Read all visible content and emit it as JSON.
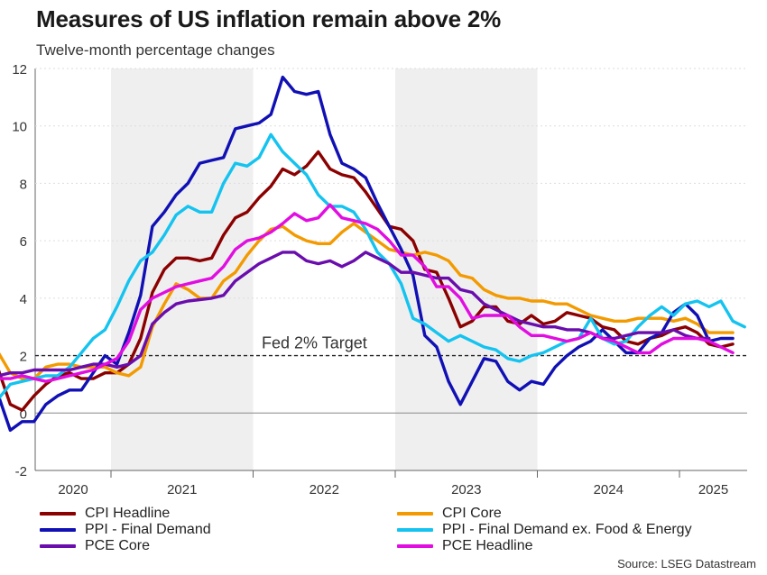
{
  "title": "Measures of US inflation remain above 2%",
  "subtitle": "Twelve-month percentage changes",
  "source": "Source: LSEG Datastream",
  "annotation": "Fed 2% Target",
  "chart_data": {
    "type": "line",
    "title": "Measures of US inflation remain above 2%",
    "subtitle": "Twelve-month percentage changes",
    "ylim": [
      -2,
      12
    ],
    "yticks": [
      "12",
      "10",
      "8",
      "6",
      "4",
      "2",
      "0",
      "-2"
    ],
    "ytick_values": [
      12,
      10,
      8,
      6,
      4,
      2,
      0,
      -2
    ],
    "year_labels": [
      "2020",
      "2021",
      "2022",
      "2023",
      "2024",
      "2025"
    ],
    "grid": true,
    "legend_position": "bottom",
    "reference_line": {
      "value": 2,
      "label": "Fed 2% Target",
      "style": "dashed"
    },
    "shaded_years": [
      "2021",
      "2023"
    ],
    "x_start": "2020-01",
    "x_end": "2025-06",
    "series": [
      {
        "name": "CPI Headline",
        "color": "#8b0000",
        "values": [
          2.5,
          2.3,
          1.5,
          0.3,
          0.1,
          0.6,
          1.0,
          1.3,
          1.4,
          1.2,
          1.2,
          1.4,
          1.4,
          1.7,
          2.6,
          4.2,
          5.0,
          5.4,
          5.4,
          5.3,
          5.4,
          6.2,
          6.8,
          7.0,
          7.5,
          7.9,
          8.5,
          8.3,
          8.6,
          9.1,
          8.5,
          8.3,
          8.2,
          7.7,
          7.1,
          6.5,
          6.4,
          6.0,
          5.0,
          4.9,
          4.0,
          3.0,
          3.2,
          3.7,
          3.7,
          3.2,
          3.1,
          3.4,
          3.1,
          3.2,
          3.5,
          3.4,
          3.3,
          3.0,
          2.9,
          2.5,
          2.4,
          2.6,
          2.7,
          2.9,
          3.0,
          2.8,
          2.4,
          2.3,
          2.4
        ]
      },
      {
        "name": "CPI Core",
        "color": "#f39a00",
        "values": [
          2.3,
          2.4,
          2.1,
          1.4,
          1.2,
          1.2,
          1.6,
          1.7,
          1.7,
          1.6,
          1.6,
          1.6,
          1.4,
          1.3,
          1.6,
          3.0,
          3.8,
          4.5,
          4.3,
          4.0,
          4.0,
          4.6,
          4.9,
          5.5,
          6.0,
          6.4,
          6.5,
          6.2,
          6.0,
          5.9,
          5.9,
          6.3,
          6.6,
          6.3,
          6.0,
          5.7,
          5.6,
          5.5,
          5.6,
          5.5,
          5.3,
          4.8,
          4.7,
          4.3,
          4.1,
          4.0,
          4.0,
          3.9,
          3.9,
          3.8,
          3.8,
          3.6,
          3.4,
          3.3,
          3.2,
          3.2,
          3.3,
          3.3,
          3.3,
          3.2,
          3.3,
          3.1,
          2.8,
          2.8,
          2.8
        ]
      },
      {
        "name": "PPI - Final Demand",
        "color": "#1010b4",
        "values": [
          2.1,
          1.3,
          0.6,
          -0.6,
          -0.3,
          -0.3,
          0.3,
          0.6,
          0.8,
          0.8,
          1.4,
          2.0,
          1.7,
          2.8,
          4.1,
          6.5,
          7.0,
          7.6,
          8.0,
          8.7,
          8.8,
          8.9,
          9.9,
          10.0,
          10.1,
          10.4,
          11.7,
          11.2,
          11.1,
          11.2,
          9.7,
          8.7,
          8.5,
          8.2,
          7.3,
          6.5,
          5.7,
          4.8,
          2.7,
          2.3,
          1.1,
          0.3,
          1.1,
          1.9,
          1.8,
          1.1,
          0.8,
          1.1,
          1.0,
          1.6,
          2.0,
          2.3,
          2.5,
          2.9,
          2.5,
          2.1,
          2.1,
          2.6,
          2.8,
          3.5,
          3.8,
          3.4,
          2.5,
          2.6,
          2.6
        ]
      },
      {
        "name": "PPI - Final Demand ex. Food & Energy",
        "color": "#14c3ef",
        "values": [
          0.3,
          0.6,
          0.5,
          1.0,
          1.1,
          1.2,
          1.3,
          1.3,
          1.6,
          2.1,
          2.6,
          2.9,
          3.7,
          4.6,
          5.3,
          5.6,
          6.2,
          6.9,
          7.2,
          7.0,
          7.0,
          8.0,
          8.7,
          8.6,
          8.9,
          9.7,
          9.1,
          8.7,
          8.3,
          7.6,
          7.2,
          7.2,
          7.0,
          6.4,
          5.6,
          5.2,
          4.5,
          3.3,
          3.1,
          2.8,
          2.5,
          2.7,
          2.5,
          2.3,
          2.2,
          1.9,
          1.8,
          2.0,
          2.1,
          2.3,
          2.5,
          2.6,
          3.3,
          2.6,
          2.4,
          2.5,
          3.0,
          3.4,
          3.7,
          3.4,
          3.8,
          3.9,
          3.7,
          3.9,
          3.2,
          3.0
        ]
      },
      {
        "name": "PCE Core",
        "color": "#6a0dad",
        "values": [
          1.0,
          1.2,
          1.3,
          1.4,
          1.4,
          1.5,
          1.5,
          1.5,
          1.5,
          1.6,
          1.7,
          1.7,
          1.6,
          1.7,
          2.0,
          3.1,
          3.5,
          3.8,
          3.9,
          3.95,
          4.0,
          4.1,
          4.6,
          4.9,
          5.2,
          5.4,
          5.6,
          5.6,
          5.3,
          5.2,
          5.3,
          5.1,
          5.3,
          5.6,
          5.4,
          5.2,
          4.9,
          4.9,
          4.8,
          4.7,
          4.7,
          4.3,
          4.2,
          3.8,
          3.6,
          3.4,
          3.2,
          3.1,
          3.0,
          3.0,
          2.9,
          2.9,
          2.8,
          2.6,
          2.6,
          2.7,
          2.8,
          2.8,
          2.8,
          2.9,
          2.7,
          2.6,
          2.6
        ]
      },
      {
        "name": "PCE Headline",
        "color": "#e10de1",
        "values": [
          0.8,
          1.0,
          1.2,
          1.2,
          1.3,
          1.2,
          1.1,
          1.2,
          1.3,
          1.4,
          1.5,
          1.7,
          1.9,
          2.5,
          3.6,
          4.0,
          4.2,
          4.4,
          4.5,
          4.6,
          4.7,
          5.1,
          5.7,
          6.0,
          6.1,
          6.3,
          6.6,
          6.95,
          6.7,
          6.8,
          7.25,
          6.8,
          6.7,
          6.6,
          6.4,
          6.0,
          5.5,
          5.5,
          5.1,
          4.4,
          4.4,
          4.0,
          3.3,
          3.4,
          3.4,
          3.4,
          3.0,
          2.7,
          2.7,
          2.6,
          2.5,
          2.6,
          2.8,
          2.6,
          2.5,
          2.3,
          2.1,
          2.1,
          2.4,
          2.6,
          2.6,
          2.6,
          2.5,
          2.3,
          2.1
        ]
      }
    ]
  },
  "legend": [
    {
      "label": "CPI Headline",
      "color": "#8b0000"
    },
    {
      "label": "CPI Core",
      "color": "#f39a00"
    },
    {
      "label": "PPI - Final Demand",
      "color": "#1010b4"
    },
    {
      "label": "PPI - Final Demand ex. Food & Energy",
      "color": "#14c3ef"
    },
    {
      "label": "PCE Core",
      "color": "#6a0dad"
    },
    {
      "label": "PCE Headline",
      "color": "#e10de1"
    }
  ]
}
